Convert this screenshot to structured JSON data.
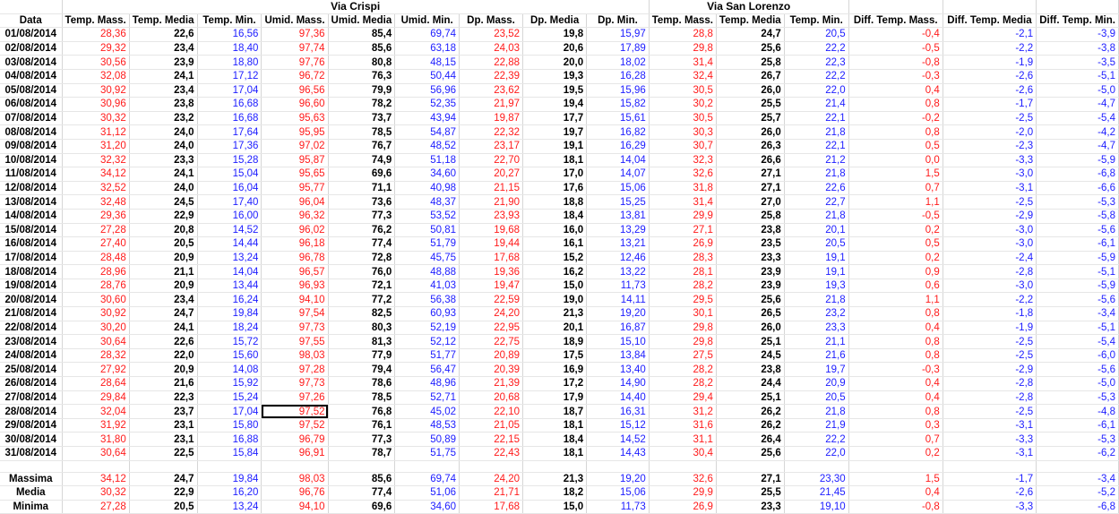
{
  "groups": {
    "via_crispi": "Via Crispi",
    "via_san_lorenzo": "Via San Lorenzo"
  },
  "headers": [
    "Data",
    "Temp. Mass.",
    "Temp. Media",
    "Temp. Min.",
    "Umid. Mass.",
    "Umid. Media",
    "Umid. Min.",
    "Dp. Mass.",
    "Dp. Media",
    "Dp. Min.",
    "Temp. Mass.",
    "Temp. Media",
    "Temp. Min.",
    "Diff. Temp. Mass.",
    "Diff. Temp. Media",
    "Diff. Temp. Min."
  ],
  "rows": [
    [
      "01/08/2014",
      "28,36",
      "22,6",
      "16,56",
      "97,36",
      "85,4",
      "69,74",
      "23,52",
      "19,8",
      "15,97",
      "28,8",
      "24,7",
      "20,5",
      "-0,4",
      "-2,1",
      "-3,9"
    ],
    [
      "02/08/2014",
      "29,32",
      "23,4",
      "18,40",
      "97,74",
      "85,6",
      "63,18",
      "24,03",
      "20,6",
      "17,89",
      "29,8",
      "25,6",
      "22,2",
      "-0,5",
      "-2,2",
      "-3,8"
    ],
    [
      "03/08/2014",
      "30,56",
      "23,9",
      "18,80",
      "97,76",
      "80,8",
      "48,15",
      "22,88",
      "20,0",
      "18,02",
      "31,4",
      "25,8",
      "22,3",
      "-0,8",
      "-1,9",
      "-3,5"
    ],
    [
      "04/08/2014",
      "32,08",
      "24,1",
      "17,12",
      "96,72",
      "76,3",
      "50,44",
      "22,39",
      "19,3",
      "16,28",
      "32,4",
      "26,7",
      "22,2",
      "-0,3",
      "-2,6",
      "-5,1"
    ],
    [
      "05/08/2014",
      "30,92",
      "23,4",
      "17,04",
      "96,56",
      "79,9",
      "56,96",
      "23,62",
      "19,5",
      "15,96",
      "30,5",
      "26,0",
      "22,0",
      "0,4",
      "-2,6",
      "-5,0"
    ],
    [
      "06/08/2014",
      "30,96",
      "23,8",
      "16,68",
      "96,60",
      "78,2",
      "52,35",
      "21,97",
      "19,4",
      "15,82",
      "30,2",
      "25,5",
      "21,4",
      "0,8",
      "-1,7",
      "-4,7"
    ],
    [
      "07/08/2014",
      "30,32",
      "23,2",
      "16,68",
      "95,63",
      "73,7",
      "43,94",
      "19,87",
      "17,7",
      "15,61",
      "30,5",
      "25,7",
      "22,1",
      "-0,2",
      "-2,5",
      "-5,4"
    ],
    [
      "08/08/2014",
      "31,12",
      "24,0",
      "17,64",
      "95,95",
      "78,5",
      "54,87",
      "22,32",
      "19,7",
      "16,82",
      "30,3",
      "26,0",
      "21,8",
      "0,8",
      "-2,0",
      "-4,2"
    ],
    [
      "09/08/2014",
      "31,20",
      "24,0",
      "17,36",
      "97,02",
      "76,7",
      "48,52",
      "23,17",
      "19,1",
      "16,29",
      "30,7",
      "26,3",
      "22,1",
      "0,5",
      "-2,3",
      "-4,7"
    ],
    [
      "10/08/2014",
      "32,32",
      "23,3",
      "15,28",
      "95,87",
      "74,9",
      "51,18",
      "22,70",
      "18,1",
      "14,04",
      "32,3",
      "26,6",
      "21,2",
      "0,0",
      "-3,3",
      "-5,9"
    ],
    [
      "11/08/2014",
      "34,12",
      "24,1",
      "15,04",
      "95,65",
      "69,6",
      "34,60",
      "20,27",
      "17,0",
      "14,07",
      "32,6",
      "27,1",
      "21,8",
      "1,5",
      "-3,0",
      "-6,8"
    ],
    [
      "12/08/2014",
      "32,52",
      "24,0",
      "16,04",
      "95,77",
      "71,1",
      "40,98",
      "21,15",
      "17,6",
      "15,06",
      "31,8",
      "27,1",
      "22,6",
      "0,7",
      "-3,1",
      "-6,6"
    ],
    [
      "13/08/2014",
      "32,48",
      "24,5",
      "17,40",
      "96,04",
      "73,6",
      "48,37",
      "21,90",
      "18,8",
      "15,25",
      "31,4",
      "27,0",
      "22,7",
      "1,1",
      "-2,5",
      "-5,3"
    ],
    [
      "14/08/2014",
      "29,36",
      "22,9",
      "16,00",
      "96,32",
      "77,3",
      "53,52",
      "23,93",
      "18,4",
      "13,81",
      "29,9",
      "25,8",
      "21,8",
      "-0,5",
      "-2,9",
      "-5,8"
    ],
    [
      "15/08/2014",
      "27,28",
      "20,8",
      "14,52",
      "96,02",
      "76,2",
      "50,81",
      "19,68",
      "16,0",
      "13,29",
      "27,1",
      "23,8",
      "20,1",
      "0,2",
      "-3,0",
      "-5,6"
    ],
    [
      "16/08/2014",
      "27,40",
      "20,5",
      "14,44",
      "96,18",
      "77,4",
      "51,79",
      "19,44",
      "16,1",
      "13,21",
      "26,9",
      "23,5",
      "20,5",
      "0,5",
      "-3,0",
      "-6,1"
    ],
    [
      "17/08/2014",
      "28,48",
      "20,9",
      "13,24",
      "96,78",
      "72,8",
      "45,75",
      "17,68",
      "15,2",
      "12,46",
      "28,3",
      "23,3",
      "19,1",
      "0,2",
      "-2,4",
      "-5,9"
    ],
    [
      "18/08/2014",
      "28,96",
      "21,1",
      "14,04",
      "96,57",
      "76,0",
      "48,88",
      "19,36",
      "16,2",
      "13,22",
      "28,1",
      "23,9",
      "19,1",
      "0,9",
      "-2,8",
      "-5,1"
    ],
    [
      "19/08/2014",
      "28,76",
      "20,9",
      "13,44",
      "96,93",
      "72,1",
      "41,03",
      "19,47",
      "15,0",
      "11,73",
      "28,2",
      "23,9",
      "19,3",
      "0,6",
      "-3,0",
      "-5,9"
    ],
    [
      "20/08/2014",
      "30,60",
      "23,4",
      "16,24",
      "94,10",
      "77,2",
      "56,38",
      "22,59",
      "19,0",
      "14,11",
      "29,5",
      "25,6",
      "21,8",
      "1,1",
      "-2,2",
      "-5,6"
    ],
    [
      "21/08/2014",
      "30,92",
      "24,7",
      "19,84",
      "97,54",
      "82,5",
      "60,93",
      "24,20",
      "21,3",
      "19,20",
      "30,1",
      "26,5",
      "23,2",
      "0,8",
      "-1,8",
      "-3,4"
    ],
    [
      "22/08/2014",
      "30,20",
      "24,1",
      "18,24",
      "97,73",
      "80,3",
      "52,19",
      "22,95",
      "20,1",
      "16,87",
      "29,8",
      "26,0",
      "23,3",
      "0,4",
      "-1,9",
      "-5,1"
    ],
    [
      "23/08/2014",
      "30,64",
      "22,6",
      "15,72",
      "97,55",
      "81,3",
      "52,12",
      "22,75",
      "18,9",
      "15,10",
      "29,8",
      "25,1",
      "21,1",
      "0,8",
      "-2,5",
      "-5,4"
    ],
    [
      "24/08/2014",
      "28,32",
      "22,0",
      "15,60",
      "98,03",
      "77,9",
      "51,77",
      "20,89",
      "17,5",
      "13,84",
      "27,5",
      "24,5",
      "21,6",
      "0,8",
      "-2,5",
      "-6,0"
    ],
    [
      "25/08/2014",
      "27,92",
      "20,9",
      "14,08",
      "97,28",
      "79,4",
      "56,47",
      "20,39",
      "16,9",
      "13,40",
      "28,2",
      "23,8",
      "19,7",
      "-0,3",
      "-2,9",
      "-5,6"
    ],
    [
      "26/08/2014",
      "28,64",
      "21,6",
      "15,92",
      "97,73",
      "78,6",
      "48,96",
      "21,39",
      "17,2",
      "14,90",
      "28,2",
      "24,4",
      "20,9",
      "0,4",
      "-2,8",
      "-5,0"
    ],
    [
      "27/08/2014",
      "29,84",
      "22,3",
      "15,24",
      "97,26",
      "78,5",
      "52,71",
      "20,68",
      "17,9",
      "14,40",
      "29,4",
      "25,1",
      "20,5",
      "0,4",
      "-2,8",
      "-5,3"
    ],
    [
      "28/08/2014",
      "32,04",
      "23,7",
      "17,04",
      "97,52",
      "76,8",
      "45,02",
      "22,10",
      "18,7",
      "16,31",
      "31,2",
      "26,2",
      "21,8",
      "0,8",
      "-2,5",
      "-4,8"
    ],
    [
      "29/08/2014",
      "31,92",
      "23,1",
      "15,80",
      "97,52",
      "76,1",
      "48,53",
      "21,05",
      "18,1",
      "15,12",
      "31,6",
      "26,2",
      "21,9",
      "0,3",
      "-3,1",
      "-6,1"
    ],
    [
      "30/08/2014",
      "31,80",
      "23,1",
      "16,88",
      "96,79",
      "77,3",
      "50,89",
      "22,15",
      "18,4",
      "14,52",
      "31,1",
      "26,4",
      "22,2",
      "0,7",
      "-3,3",
      "-5,3"
    ],
    [
      "31/08/2014",
      "30,64",
      "22,5",
      "15,84",
      "96,91",
      "78,7",
      "51,75",
      "22,43",
      "18,1",
      "14,43",
      "30,4",
      "25,6",
      "22,0",
      "0,2",
      "-3,1",
      "-6,2"
    ]
  ],
  "summary": [
    [
      "Massima",
      "34,12",
      "24,7",
      "19,84",
      "98,03",
      "85,6",
      "69,74",
      "24,20",
      "21,3",
      "19,20",
      "32,6",
      "27,1",
      "23,30",
      "1,5",
      "-1,7",
      "-3,4"
    ],
    [
      "Media",
      "30,32",
      "22,9",
      "16,20",
      "96,76",
      "77,4",
      "51,06",
      "21,71",
      "18,2",
      "15,06",
      "29,9",
      "25,5",
      "21,45",
      "0,4",
      "-2,6",
      "-5,2"
    ],
    [
      "Minima",
      "27,28",
      "20,5",
      "13,24",
      "94,10",
      "69,6",
      "34,60",
      "17,68",
      "15,0",
      "11,73",
      "26,9",
      "23,3",
      "19,10",
      "-0,8",
      "-3,3",
      "-6,8"
    ]
  ],
  "selected_cell": {
    "row": 27,
    "col": 4
  },
  "colors": {
    "max": "#ff1a1a",
    "media": "#000000",
    "min": "#1c1cff",
    "grid": "#d6d6d6"
  }
}
